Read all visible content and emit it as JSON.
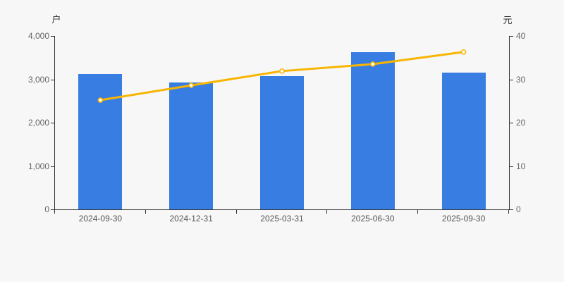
{
  "chart_data": {
    "type": "bar",
    "subtype": "bar-line-combo",
    "categories": [
      "2024-09-30",
      "2024-12-31",
      "2025-03-31",
      "2025-06-30",
      "2025-09-30"
    ],
    "series": [
      {
        "id": "bar-series",
        "type": "bar",
        "axis": "left",
        "values": [
          3120,
          2930,
          3080,
          3630,
          3160
        ],
        "color": "#387ee2"
      },
      {
        "id": "line-series",
        "type": "line",
        "axis": "right",
        "values": [
          25.2,
          28.6,
          31.9,
          33.5,
          36.3
        ],
        "color": "#f8b500",
        "marker": "circle-white-fill"
      }
    ],
    "left_axis": {
      "unit": "户",
      "min": 0,
      "max": 4000,
      "ticks": [
        0,
        1000,
        2000,
        3000,
        4000
      ],
      "tick_labels": [
        "0",
        "1,000",
        "2,000",
        "3,000",
        "4,000"
      ]
    },
    "right_axis": {
      "unit": "元",
      "min": 0,
      "max": 40,
      "ticks": [
        0,
        10,
        20,
        30,
        40
      ],
      "tick_labels": [
        "0",
        "10",
        "20",
        "30",
        "40"
      ]
    },
    "title": "",
    "legend": "none",
    "grid": false,
    "colors": {
      "background": "#f7f7f7",
      "axis_line": "#333333",
      "y_tick_label": "#666666",
      "x_tick_label": "#555555",
      "unit_label": "#333333"
    }
  }
}
